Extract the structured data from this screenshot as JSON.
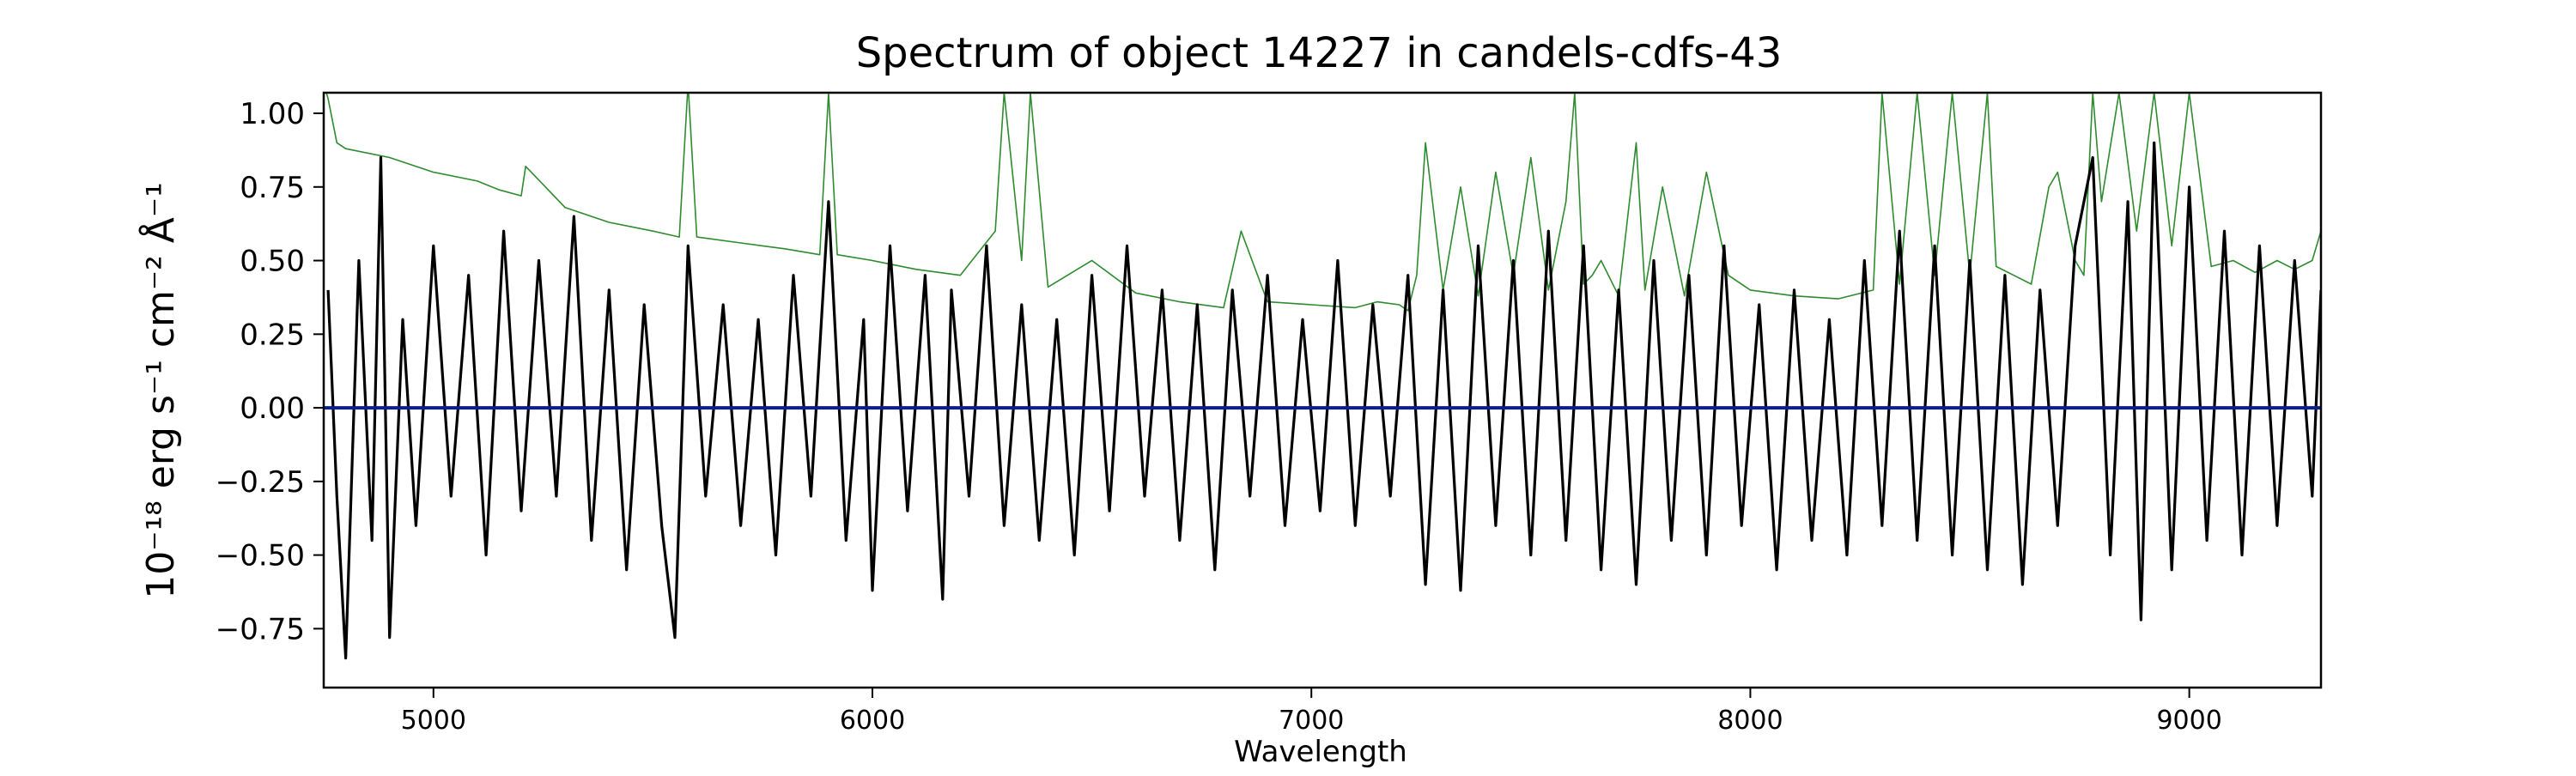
{
  "chart_data": {
    "type": "line",
    "title": "Spectrum of object 14227 in candels-cdfs-43",
    "xlabel": "Wavelength",
    "ylabel": "10⁻¹⁸ erg s⁻¹ cm⁻² Å⁻¹",
    "xlim": [
      4750,
      9300
    ],
    "ylim": [
      -0.95,
      1.07
    ],
    "xticks": [
      5000,
      6000,
      7000,
      8000,
      9000
    ],
    "xtick_labels": [
      "5000",
      "6000",
      "7000",
      "8000",
      "9000"
    ],
    "yticks": [
      -0.75,
      -0.5,
      -0.25,
      0.0,
      0.25,
      0.5,
      0.75,
      1.0
    ],
    "ytick_labels": [
      "−0.75",
      "−0.50",
      "−0.25",
      "0.00",
      "0.25",
      "0.50",
      "0.75",
      "1.00"
    ],
    "grid": false,
    "colors": {
      "flux": "#000000",
      "error": "#2e8b2e",
      "model": "#0a1f8f"
    },
    "series": [
      {
        "role": "flux",
        "x": [
          4760,
          4780,
          4800,
          4830,
          4860,
          4880,
          4900,
          4930,
          4960,
          5000,
          5040,
          5080,
          5120,
          5160,
          5200,
          5240,
          5280,
          5320,
          5360,
          5400,
          5440,
          5480,
          5520,
          5550,
          5580,
          5620,
          5660,
          5700,
          5740,
          5780,
          5820,
          5860,
          5900,
          5940,
          5980,
          6000,
          6040,
          6080,
          6120,
          6160,
          6180,
          6220,
          6260,
          6300,
          6340,
          6380,
          6420,
          6460,
          6500,
          6540,
          6580,
          6620,
          6660,
          6700,
          6740,
          6780,
          6820,
          6860,
          6900,
          6940,
          6980,
          7020,
          7060,
          7100,
          7140,
          7180,
          7220,
          7260,
          7300,
          7340,
          7380,
          7420,
          7460,
          7500,
          7540,
          7580,
          7620,
          7660,
          7700,
          7740,
          7780,
          7820,
          7860,
          7900,
          7940,
          7980,
          8020,
          8060,
          8100,
          8140,
          8180,
          8220,
          8260,
          8300,
          8340,
          8380,
          8420,
          8460,
          8500,
          8540,
          8580,
          8620,
          8660,
          8700,
          8740,
          8780,
          8820,
          8860,
          8890,
          8920,
          8960,
          9000,
          9040,
          9080,
          9120,
          9160,
          9200,
          9240,
          9280,
          9300
        ],
        "y": [
          0.4,
          -0.3,
          -0.85,
          0.5,
          -0.45,
          0.85,
          -0.78,
          0.3,
          -0.4,
          0.55,
          -0.3,
          0.45,
          -0.5,
          0.6,
          -0.35,
          0.5,
          -0.3,
          0.65,
          -0.45,
          0.4,
          -0.55,
          0.35,
          -0.4,
          -0.78,
          0.55,
          -0.3,
          0.35,
          -0.4,
          0.3,
          -0.5,
          0.45,
          -0.3,
          0.7,
          -0.45,
          0.3,
          -0.62,
          0.55,
          -0.35,
          0.45,
          -0.65,
          0.4,
          -0.3,
          0.55,
          -0.4,
          0.35,
          -0.45,
          0.3,
          -0.5,
          0.45,
          -0.35,
          0.55,
          -0.3,
          0.4,
          -0.45,
          0.35,
          -0.55,
          0.4,
          -0.3,
          0.45,
          -0.4,
          0.3,
          -0.35,
          0.5,
          -0.4,
          0.35,
          -0.3,
          0.45,
          -0.6,
          0.4,
          -0.62,
          0.55,
          -0.4,
          0.5,
          -0.5,
          0.6,
          -0.45,
          0.55,
          -0.55,
          0.4,
          -0.6,
          0.5,
          -0.45,
          0.45,
          -0.5,
          0.55,
          -0.4,
          0.35,
          -0.55,
          0.4,
          -0.45,
          0.3,
          -0.5,
          0.5,
          -0.4,
          0.6,
          -0.45,
          0.55,
          -0.5,
          0.5,
          -0.55,
          0.45,
          -0.6,
          0.4,
          -0.4,
          0.55,
          0.85,
          -0.5,
          0.7,
          -0.72,
          0.9,
          -0.55,
          0.75,
          -0.45,
          0.6,
          -0.5,
          0.55,
          -0.4,
          0.5,
          -0.3,
          0.4
        ]
      },
      {
        "role": "error",
        "x": [
          4750,
          4760,
          4780,
          4800,
          4900,
          5000,
          5100,
          5150,
          5200,
          5210,
          5300,
          5400,
          5500,
          5560,
          5580,
          5600,
          5700,
          5800,
          5880,
          5900,
          5920,
          6000,
          6100,
          6200,
          6280,
          6300,
          6340,
          6360,
          6400,
          6500,
          6600,
          6700,
          6800,
          6840,
          6900,
          7000,
          7100,
          7150,
          7200,
          7220,
          7240,
          7260,
          7300,
          7340,
          7380,
          7420,
          7460,
          7500,
          7540,
          7580,
          7600,
          7620,
          7640,
          7660,
          7700,
          7740,
          7760,
          7800,
          7850,
          7900,
          7950,
          8000,
          8100,
          8200,
          8280,
          8300,
          8340,
          8380,
          8420,
          8460,
          8500,
          8540,
          8560,
          8600,
          8640,
          8680,
          8700,
          8740,
          8760,
          8780,
          8800,
          8840,
          8880,
          8920,
          8960,
          9000,
          9050,
          9100,
          9150,
          9200,
          9240,
          9280,
          9300
        ],
        "y": [
          1.1,
          1.05,
          0.9,
          0.88,
          0.85,
          0.8,
          0.77,
          0.74,
          0.72,
          0.82,
          0.68,
          0.63,
          0.6,
          0.58,
          1.1,
          0.58,
          0.56,
          0.54,
          0.52,
          1.07,
          0.52,
          0.5,
          0.47,
          0.45,
          0.6,
          1.07,
          0.5,
          1.07,
          0.41,
          0.5,
          0.39,
          0.36,
          0.34,
          0.6,
          0.36,
          0.35,
          0.34,
          0.36,
          0.35,
          0.33,
          0.45,
          0.9,
          0.4,
          0.75,
          0.38,
          0.8,
          0.45,
          0.85,
          0.4,
          0.7,
          1.07,
          0.42,
          0.45,
          0.5,
          0.38,
          0.9,
          0.4,
          0.75,
          0.38,
          0.8,
          0.45,
          0.4,
          0.38,
          0.37,
          0.4,
          1.07,
          0.42,
          1.07,
          0.45,
          1.07,
          0.45,
          1.07,
          0.48,
          0.45,
          0.42,
          0.75,
          0.8,
          0.5,
          0.45,
          1.07,
          0.7,
          1.07,
          0.6,
          1.07,
          0.55,
          1.07,
          0.48,
          0.5,
          0.46,
          0.5,
          0.47,
          0.5,
          0.6
        ]
      },
      {
        "role": "model",
        "x": [
          4750,
          9300
        ],
        "y": [
          0.0,
          0.0
        ]
      }
    ]
  }
}
